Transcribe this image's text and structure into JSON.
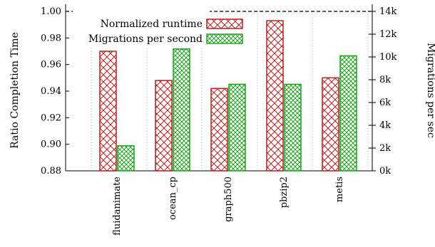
{
  "chart_data": {
    "type": "bar",
    "categories": [
      "fluidanimate",
      "ocean_cp",
      "graph500",
      "pbzip2",
      "metis"
    ],
    "series": [
      {
        "name": "Normalized runtime",
        "axis": "left",
        "values": [
          0.97,
          0.948,
          0.942,
          0.993,
          0.95
        ],
        "color": "#b22222",
        "pattern": "crosshatch"
      },
      {
        "name": "Migrations per second",
        "axis": "right",
        "values": [
          2200,
          10700,
          7600,
          7600,
          10100
        ],
        "color": "#22a022",
        "pattern": "crosshatch"
      }
    ],
    "ylabel": "Ratio Completion Time",
    "ylim": [
      0.88,
      1.0
    ],
    "yticks": [
      "0.88",
      "0.90",
      "0.92",
      "0.94",
      "0.96",
      "0.98",
      "1.00"
    ],
    "y2label": "Migrations per sec",
    "y2lim": [
      0,
      14000
    ],
    "y2ticks": [
      "0k",
      "2k",
      "4k",
      "6k",
      "8k",
      "10k",
      "12k",
      "14k"
    ],
    "reference_line": 1.0,
    "grid": "vertical dotted",
    "legend_position": "top-left"
  }
}
